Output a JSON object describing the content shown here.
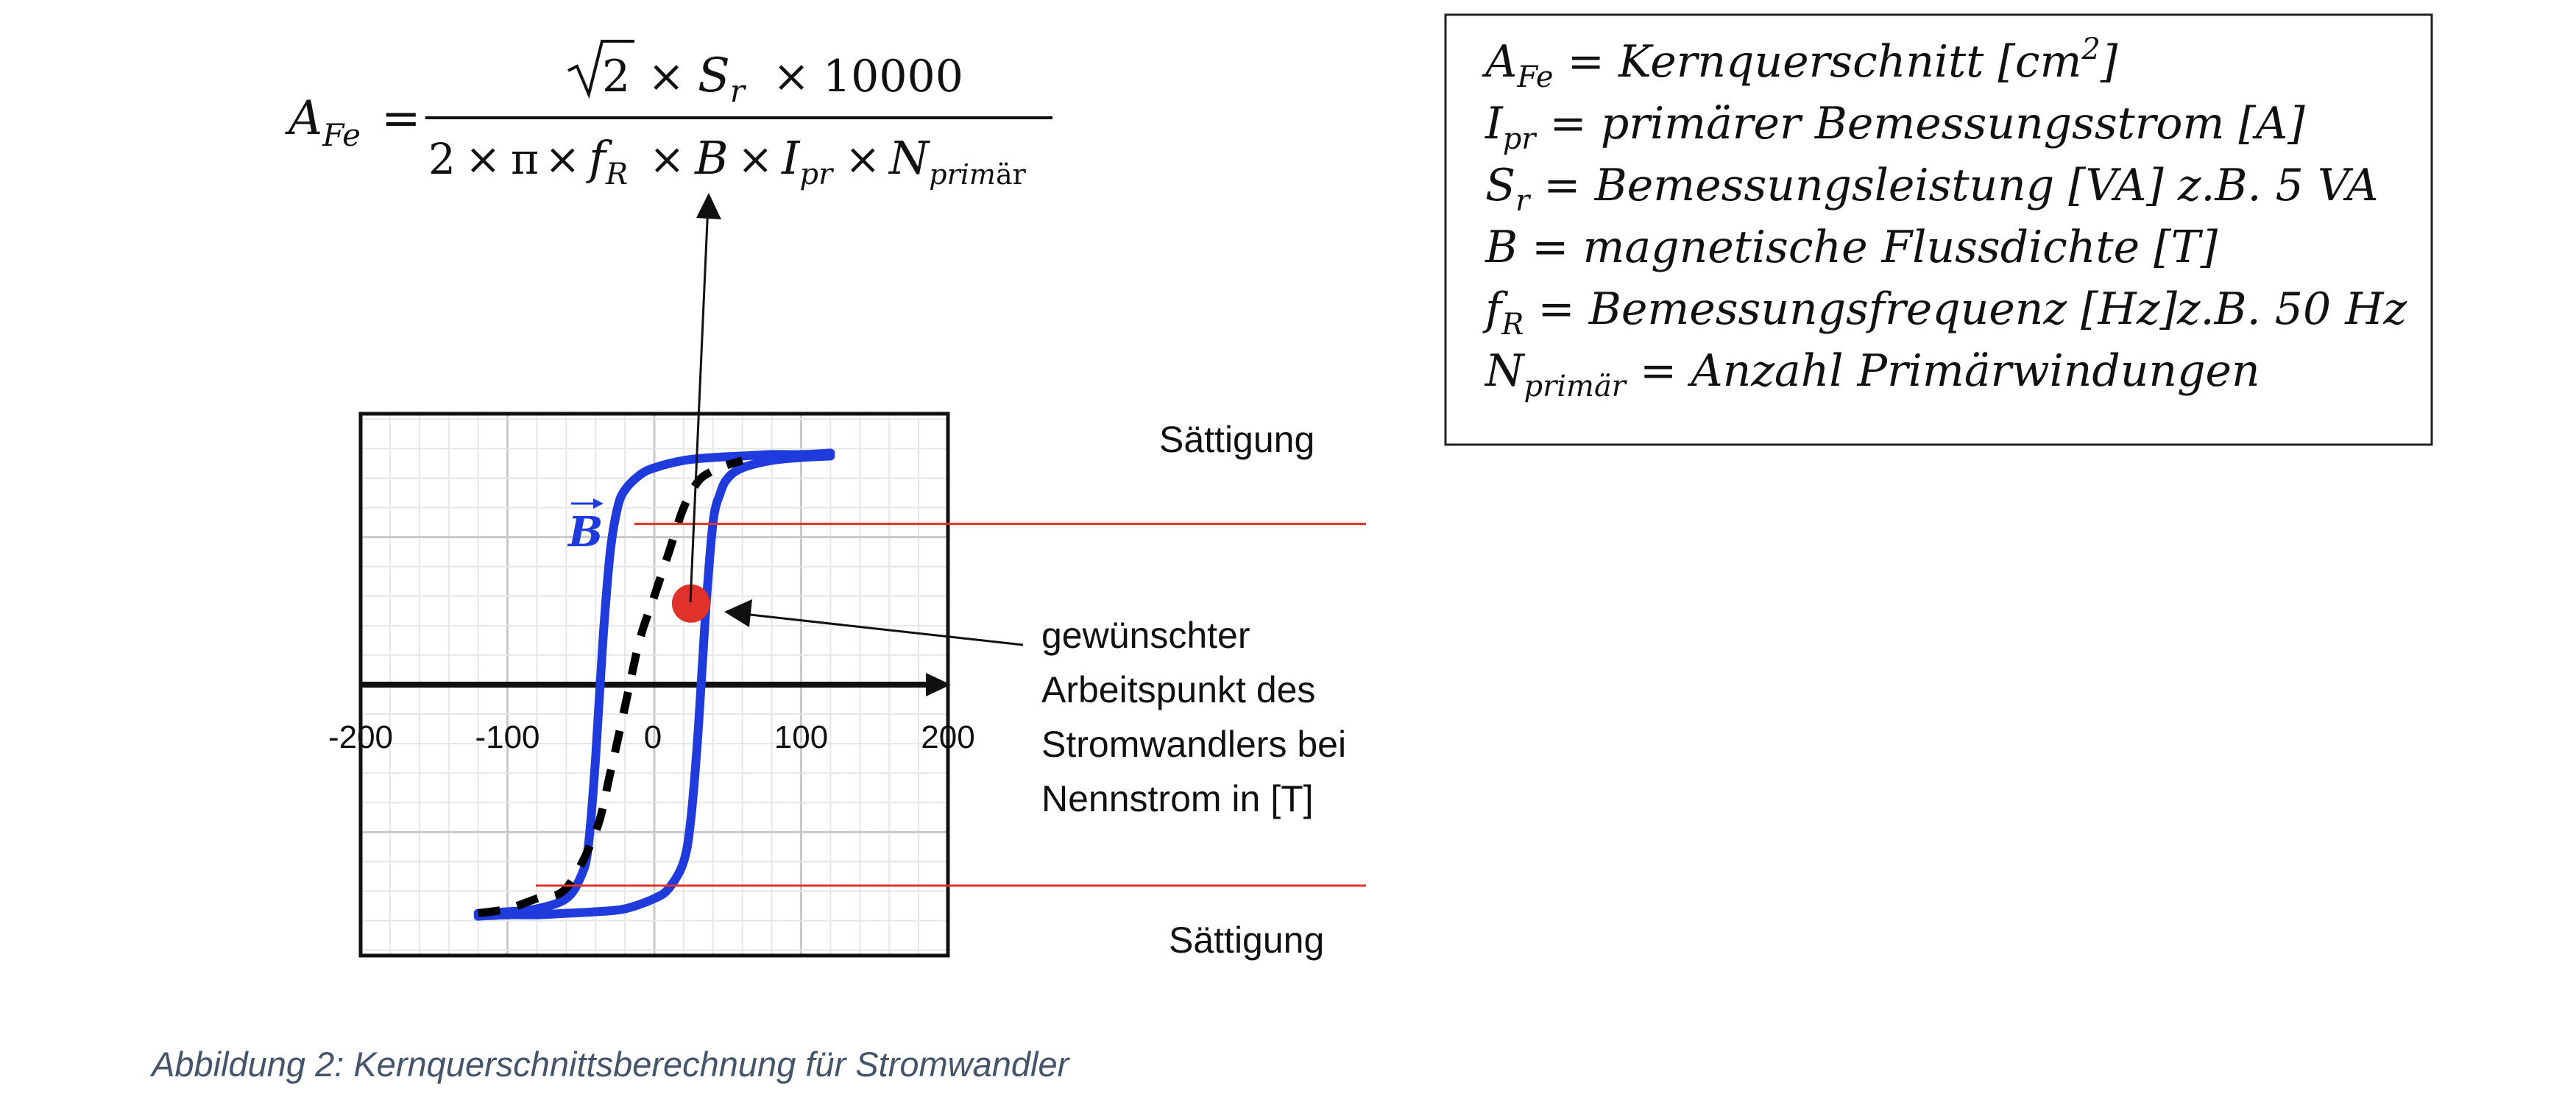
{
  "formula": {
    "lhs_main": "A",
    "lhs_sub": "Fe",
    "equals": "=",
    "numerator": {
      "sqrt_arg": "2",
      "times": "×",
      "s": "S",
      "s_sub": "r",
      "constant": "10000"
    },
    "denominator": {
      "two": "2",
      "pi": "π",
      "f": "f",
      "f_sub": "R",
      "b": "B",
      "i": "I",
      "i_sub": "pr",
      "n": "N",
      "n_sub_italic": "prim",
      "n_sub_upright": "är",
      "times": "×"
    }
  },
  "legend": {
    "items": [
      {
        "main": "A",
        "sub": "Fe",
        "text": " = Kernquerschnitt [cm",
        "sup": "2",
        "tail": "]"
      },
      {
        "main": "I",
        "sub": "pr",
        "text": " = primärer Bemessungsstrom [A]",
        "sup": "",
        "tail": ""
      },
      {
        "main": "S",
        "sub": "r",
        "text": " = Bemessungsleistung [VA] z.B. 5 VA",
        "sup": "",
        "tail": ""
      },
      {
        "main": "B",
        "sub": "",
        "text": " = magnetische Flussdichte [T]",
        "sup": "",
        "tail": ""
      },
      {
        "main": "f",
        "sub": "R",
        "text": " = Bemessungsfrequenz [Hz]z.B. 50 Hz",
        "sup": "",
        "tail": ""
      },
      {
        "main": "N",
        "sub": "primär",
        "text": " = Anzahl Primärwindungen",
        "sup": "",
        "tail": ""
      }
    ]
  },
  "chart_data": {
    "type": "line",
    "xlim": [
      -200,
      200
    ],
    "ylim": [
      -1.8,
      1.8
    ],
    "x_ticks": [
      "-200",
      "-100",
      "0",
      "100",
      "200"
    ],
    "y_axis_label": "B",
    "grid": true,
    "saturation_level": 1.1,
    "series": [
      {
        "style": "solid",
        "color": "#1f3bdb",
        "x": [
          -120,
          -100,
          -80,
          -60,
          -50,
          -45,
          -40,
          -35,
          -30,
          -25,
          -20,
          -10,
          0,
          20,
          40,
          60,
          80,
          100,
          120
        ],
        "y": [
          -1.55,
          -1.54,
          -1.52,
          -1.45,
          -1.3,
          -1.1,
          -0.5,
          0.3,
          0.9,
          1.2,
          1.32,
          1.42,
          1.47,
          1.52,
          1.54,
          1.55,
          1.56,
          1.56,
          1.57
        ]
      },
      {
        "style": "solid",
        "color": "#1f3bdb",
        "x": [
          -120,
          -100,
          -80,
          -60,
          -40,
          -20,
          0,
          10,
          20,
          25,
          30,
          35,
          40,
          45,
          50,
          60,
          80,
          100,
          120
        ],
        "y": [
          -1.57,
          -1.56,
          -1.56,
          -1.55,
          -1.54,
          -1.52,
          -1.45,
          -1.38,
          -1.2,
          -0.9,
          -0.3,
          0.5,
          1.1,
          1.3,
          1.4,
          1.47,
          1.52,
          1.54,
          1.55
        ]
      },
      {
        "style": "dashed",
        "color": "#000000",
        "x": [
          -120,
          -100,
          -80,
          -60,
          -40,
          -30,
          -20,
          -10,
          0,
          10,
          20,
          30,
          40,
          50,
          60
        ],
        "y": [
          -1.55,
          -1.52,
          -1.45,
          -1.38,
          -1.0,
          -0.6,
          -0.15,
          0.3,
          0.6,
          0.9,
          1.2,
          1.38,
          1.45,
          1.49,
          1.52
        ]
      }
    ],
    "operating_point": {
      "x": 25,
      "y": 0.55,
      "color": "#e0312a"
    }
  },
  "annotations": {
    "saturation_top": "Sättigung",
    "saturation_bottom": "Sättigung",
    "operating_point_label": [
      "gewünschter",
      "Arbeitspunkt des",
      "Stromwandlers bei",
      "Nennstrom in [T]"
    ]
  },
  "caption": "Abbildung 2: Kernquerschnittsberechnung für Stromwandler",
  "colors": {
    "curve": "#1f3bdb",
    "dashed": "#000000",
    "point": "#e0312a",
    "saturation_line": "#e0312a",
    "caption": "#44546a",
    "b_label": "#1f3bdb"
  }
}
